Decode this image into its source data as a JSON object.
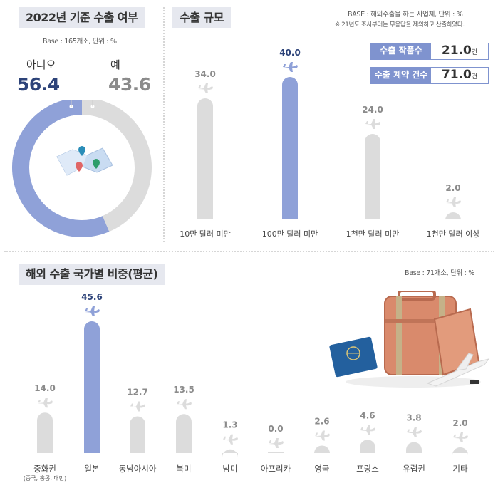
{
  "pie_section": {
    "title": "2022년 기준 수출 여부",
    "base_note": "Base : 165개소, 단위 : %",
    "no_label": "아니오",
    "no_value": "56.4",
    "yes_label": "예",
    "yes_value": "43.6"
  },
  "scale_section": {
    "title": "수출 규모",
    "base_note": "BASE : 해외수출을 하는 사업체, 단위 : %",
    "footnote": "※ 21년도 조사부터는 무응답을 제외하고 산출하였다.",
    "stats": [
      {
        "label": "수출 작품수",
        "value": "21.0",
        "unit": "건"
      },
      {
        "label": "수출 계약 건수",
        "value": "71.0",
        "unit": "건"
      }
    ]
  },
  "country_section": {
    "title": "해외 수출 국가별 비중(평균)",
    "base_note": "Base : 71개소, 단위 : %"
  },
  "colors": {
    "highlight": "#8fa1d8",
    "bar": "#dcdcdc",
    "label_highlight": "#2d4379",
    "label": "#8b8b8b",
    "title_bg": "#e6e8ef"
  },
  "chart_data": [
    {
      "type": "pie",
      "title": "2022년 기준 수출 여부",
      "categories": [
        "아니오",
        "예"
      ],
      "values": [
        56.4,
        43.6
      ]
    },
    {
      "type": "bar",
      "title": "수출 규모",
      "categories": [
        "10만 달러 미만",
        "100만 달러 미만",
        "1천만 달러 미만",
        "1천만 달러 이상"
      ],
      "values": [
        34.0,
        40.0,
        24.0,
        2.0
      ],
      "highlight_index": 1,
      "ylim": [
        0,
        40
      ]
    },
    {
      "type": "bar",
      "title": "해외 수출 국가별 비중(평균)",
      "categories": [
        "중화권",
        "일본",
        "동남아시아",
        "북미",
        "남미",
        "아프리카",
        "영국",
        "프랑스",
        "유럽권",
        "기타"
      ],
      "category_subs": [
        "(중국, 홍콩, 대만)",
        "",
        "",
        "",
        "",
        "",
        "",
        "",
        "",
        ""
      ],
      "values": [
        14.0,
        45.6,
        12.7,
        13.5,
        1.3,
        0.0,
        2.6,
        4.6,
        3.8,
        2.0
      ],
      "highlight_index": 1,
      "ylim": [
        0,
        45.6
      ]
    }
  ]
}
